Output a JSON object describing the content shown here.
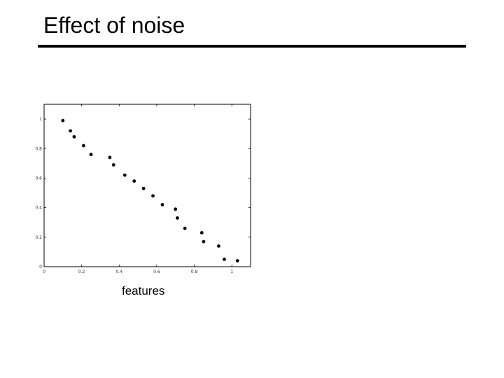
{
  "slide": {
    "title": "Effect of noise",
    "caption": "features"
  },
  "chart_data": {
    "type": "scatter",
    "title": "",
    "xlabel": "",
    "ylabel": "",
    "xlim": [
      0,
      1.1
    ],
    "ylim": [
      0,
      1.1
    ],
    "xticks": [
      0,
      0.2,
      0.4,
      0.6,
      0.8,
      1
    ],
    "xtick_labels": [
      "0",
      "0.2",
      "0.4",
      "0.6",
      "0.8",
      "1"
    ],
    "yticks": [
      0,
      0.2,
      0.4,
      0.6,
      0.8,
      1
    ],
    "ytick_labels": [
      "0",
      "0.2",
      "0.4",
      "0.6",
      "0.8",
      "1"
    ],
    "grid": false,
    "marker_color": "#000000",
    "points": [
      {
        "x": 0.1,
        "y": 0.99
      },
      {
        "x": 0.14,
        "y": 0.92
      },
      {
        "x": 0.16,
        "y": 0.88
      },
      {
        "x": 0.21,
        "y": 0.82
      },
      {
        "x": 0.25,
        "y": 0.76
      },
      {
        "x": 0.35,
        "y": 0.74
      },
      {
        "x": 0.37,
        "y": 0.69
      },
      {
        "x": 0.43,
        "y": 0.62
      },
      {
        "x": 0.48,
        "y": 0.58
      },
      {
        "x": 0.53,
        "y": 0.53
      },
      {
        "x": 0.58,
        "y": 0.48
      },
      {
        "x": 0.63,
        "y": 0.42
      },
      {
        "x": 0.7,
        "y": 0.39
      },
      {
        "x": 0.71,
        "y": 0.33
      },
      {
        "x": 0.75,
        "y": 0.26
      },
      {
        "x": 0.84,
        "y": 0.23
      },
      {
        "x": 0.85,
        "y": 0.17
      },
      {
        "x": 0.93,
        "y": 0.14
      },
      {
        "x": 0.96,
        "y": 0.05
      },
      {
        "x": 1.03,
        "y": 0.04
      }
    ]
  }
}
